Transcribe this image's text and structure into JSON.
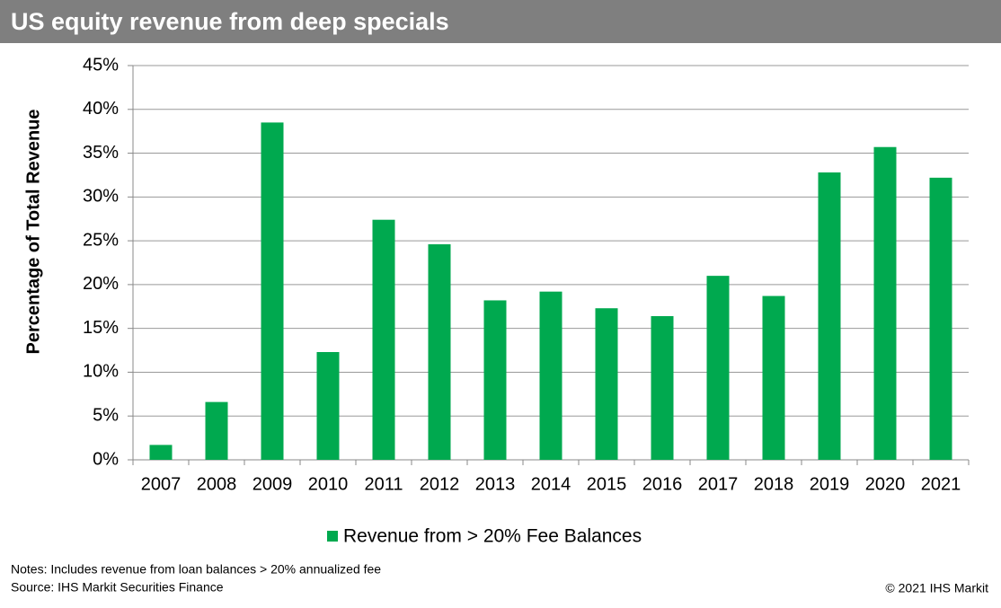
{
  "chart_data": {
    "type": "bar",
    "title": "US equity revenue from deep specials",
    "y_label": "Percentage of Total Revenue",
    "categories": [
      "2007",
      "2008",
      "2009",
      "2010",
      "2011",
      "2012",
      "2013",
      "2014",
      "2015",
      "2016",
      "2017",
      "2018",
      "2019",
      "2020",
      "2021"
    ],
    "series": [
      {
        "name": "Revenue from > 20% Fee Balances",
        "color": "#00a94f",
        "values": [
          1.7,
          6.6,
          38.5,
          12.3,
          27.4,
          24.6,
          18.2,
          19.2,
          17.3,
          16.4,
          21.0,
          18.7,
          32.8,
          35.7,
          32.2
        ]
      }
    ],
    "ylim": [
      0,
      45
    ],
    "yticks": [
      {
        "value": 0,
        "label": "0%"
      },
      {
        "value": 5,
        "label": "5%"
      },
      {
        "value": 10,
        "label": "10%"
      },
      {
        "value": 15,
        "label": "15%"
      },
      {
        "value": 20,
        "label": "20%"
      },
      {
        "value": 25,
        "label": "25%"
      },
      {
        "value": 30,
        "label": "30%"
      },
      {
        "value": 35,
        "label": "35%"
      },
      {
        "value": 40,
        "label": "40%"
      },
      {
        "value": 45,
        "label": "45%"
      }
    ],
    "grid": true,
    "notes": "Notes: Includes revenue from loan balances > 20% annualized fee",
    "source": "Source: IHS Markit Securities Finance",
    "copyright": "© 2021 IHS Markit"
  }
}
